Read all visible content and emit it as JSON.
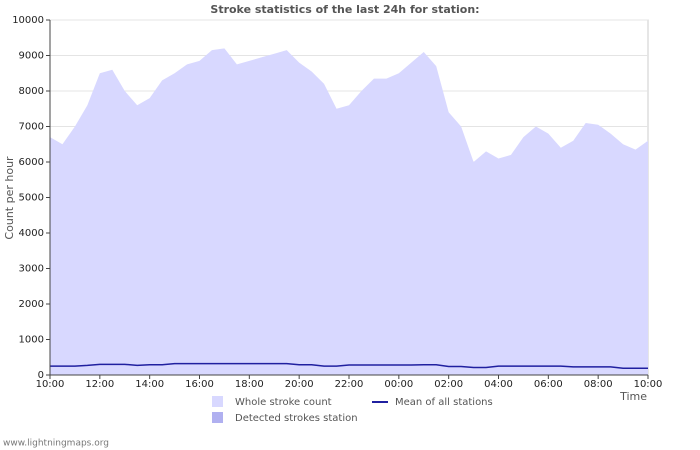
{
  "chart_data": {
    "type": "area",
    "title": "Stroke statistics of the last 24h for station:",
    "ylabel": "Count per hour",
    "xlabel": "Time",
    "footer": "www.lightningmaps.org",
    "x": [
      0,
      0.5,
      1,
      1.5,
      2,
      2.5,
      3,
      3.5,
      4,
      4.5,
      5,
      5.5,
      6,
      6.5,
      7,
      7.5,
      8,
      8.5,
      9,
      9.5,
      10,
      10.5,
      11,
      11.5,
      12,
      12.5,
      13,
      13.5,
      14,
      14.5,
      15,
      15.5,
      16,
      16.5,
      17,
      17.5,
      18,
      18.5,
      19,
      19.5,
      20,
      20.5,
      21,
      21.5,
      22,
      22.5,
      23,
      23.5,
      24
    ],
    "series": [
      {
        "name": "Whole stroke count",
        "color": "#d8d8ff",
        "kind": "area",
        "values": [
          6700,
          6500,
          7000,
          7600,
          8500,
          8600,
          8000,
          7600,
          7800,
          8300,
          8500,
          8750,
          8850,
          9150,
          9200,
          8750,
          8850,
          8950,
          9050,
          9150,
          8800,
          8550,
          8200,
          7500,
          7600,
          8000,
          8350,
          8350,
          8500,
          8800,
          9100,
          8700,
          7400,
          7000,
          6000,
          6300,
          6100,
          6200,
          6700,
          7000,
          6800,
          6400,
          6600,
          7100,
          7050,
          6800,
          6500,
          6350,
          6600
        ]
      },
      {
        "name": "Detected strokes station",
        "color": "#b0b0f0",
        "kind": "area",
        "values": [
          0,
          0,
          0,
          0,
          0,
          0,
          0,
          0,
          0,
          0,
          0,
          0,
          0,
          0,
          0,
          0,
          0,
          0,
          0,
          0,
          0,
          0,
          0,
          0,
          0,
          0,
          0,
          0,
          0,
          0,
          0,
          0,
          0,
          0,
          0,
          0,
          0,
          0,
          0,
          0,
          0,
          0,
          0,
          0,
          0,
          0,
          0,
          0,
          0
        ]
      },
      {
        "name": "Mean of all stations",
        "color": "#2020a0",
        "kind": "line",
        "values": [
          250,
          250,
          250,
          270,
          300,
          300,
          300,
          270,
          290,
          290,
          320,
          320,
          320,
          320,
          320,
          320,
          320,
          320,
          320,
          320,
          290,
          290,
          250,
          250,
          280,
          280,
          280,
          280,
          280,
          280,
          290,
          290,
          240,
          240,
          210,
          210,
          250,
          250,
          250,
          250,
          250,
          250,
          230,
          230,
          230,
          230,
          190,
          190,
          190
        ]
      }
    ],
    "xlim": [
      0,
      24
    ],
    "xticks": [
      {
        "value": 0,
        "label": "10:00"
      },
      {
        "value": 2,
        "label": "12:00"
      },
      {
        "value": 4,
        "label": "14:00"
      },
      {
        "value": 6,
        "label": "16:00"
      },
      {
        "value": 8,
        "label": "18:00"
      },
      {
        "value": 10,
        "label": "20:00"
      },
      {
        "value": 12,
        "label": "22:00"
      },
      {
        "value": 14,
        "label": "00:00"
      },
      {
        "value": 16,
        "label": "02:00"
      },
      {
        "value": 18,
        "label": "04:00"
      },
      {
        "value": 20,
        "label": "06:00"
      },
      {
        "value": 22,
        "label": "08:00"
      },
      {
        "value": 24,
        "label": "10:00"
      }
    ],
    "ylim": [
      0,
      10000
    ],
    "yticks": [
      0,
      1000,
      2000,
      3000,
      4000,
      5000,
      6000,
      7000,
      8000,
      9000,
      10000
    ],
    "grid": true
  }
}
